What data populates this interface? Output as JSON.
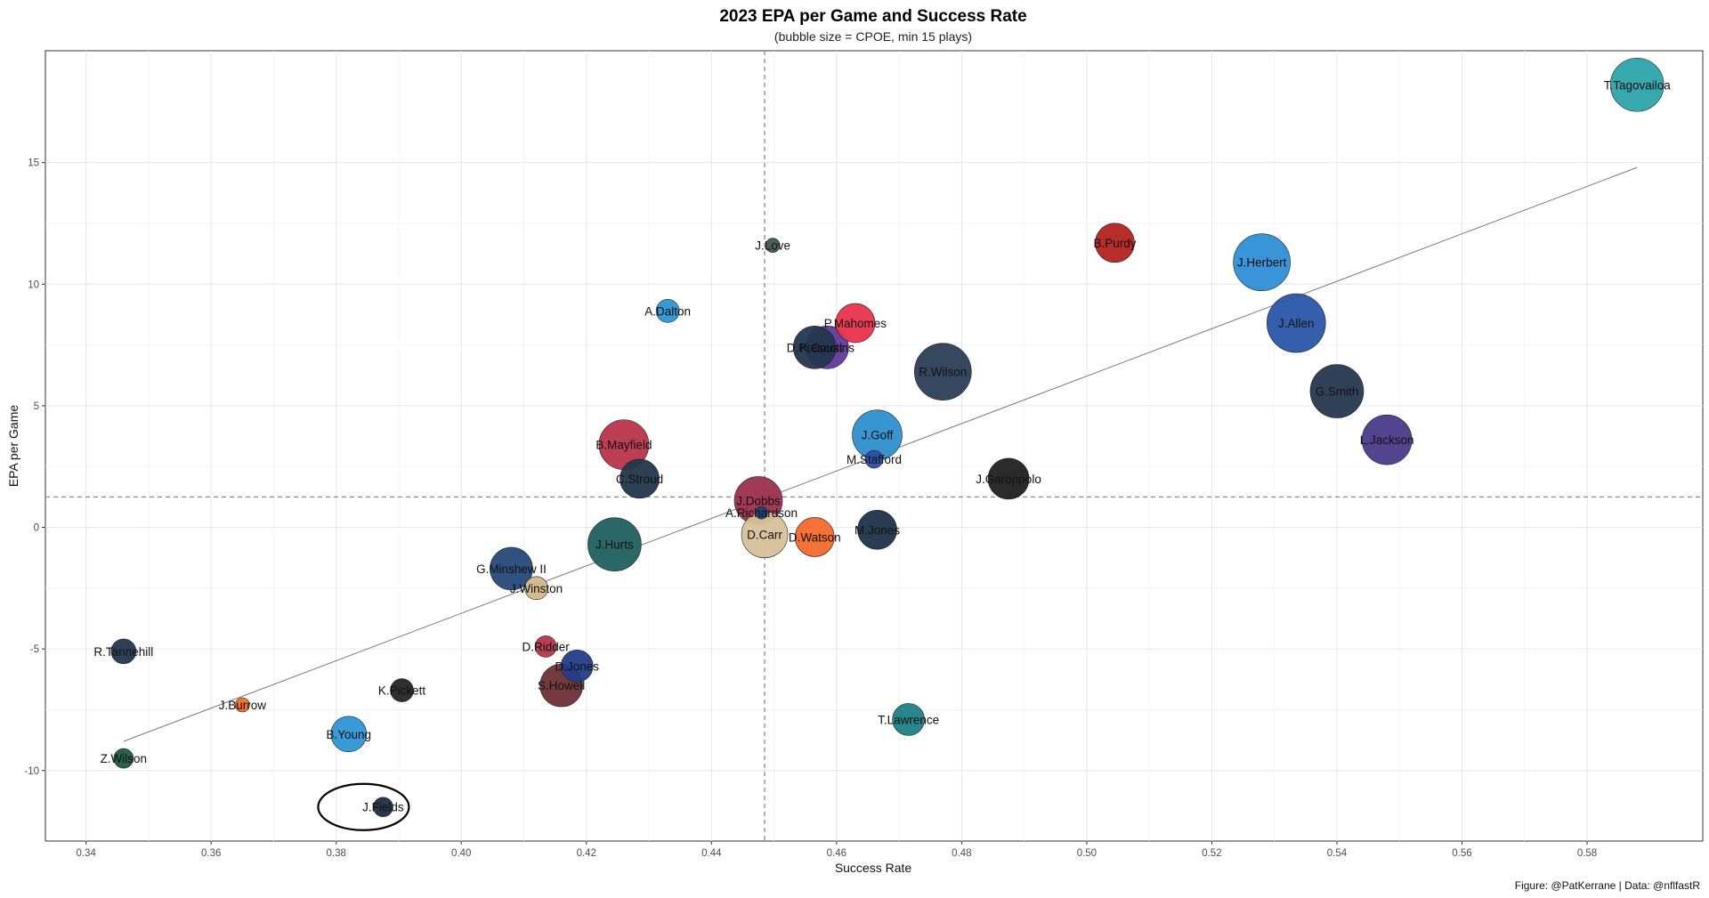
{
  "chart_data": {
    "type": "scatter",
    "title": "2023 EPA per Game and Success Rate",
    "subtitle": "(bubble size = CPOE, min 15 plays)",
    "xlabel": "Success Rate",
    "ylabel": "EPA per Game",
    "caption": "Figure: @PatKerrane | Data: @nflfastR",
    "xlim": [
      0.3335,
      0.5985
    ],
    "ylim": [
      -12.9,
      19.6
    ],
    "x_ticks": [
      "0.34",
      "0.36",
      "0.38",
      "0.40",
      "0.42",
      "0.44",
      "0.46",
      "0.48",
      "0.50",
      "0.52",
      "0.54",
      "0.56",
      "0.58"
    ],
    "y_ticks": [
      "-10",
      "-5",
      "0",
      "5",
      "10",
      "15"
    ],
    "grid": true,
    "reference_lines": {
      "vertical_x": 0.4485,
      "horizontal_y": 1.25
    },
    "trend_line": {
      "from": [
        0.346,
        -8.8
      ],
      "to": [
        0.588,
        14.8
      ]
    },
    "highlight": {
      "name": "J.Fields",
      "shape": "ellipse"
    },
    "points": [
      {
        "name": "T.Tagovailoa",
        "x": 0.588,
        "y": 18.2,
        "size": 30,
        "color": "#2BA3AA"
      },
      {
        "name": "B.Purdy",
        "x": 0.5045,
        "y": 11.7,
        "size": 22,
        "color": "#B3221F"
      },
      {
        "name": "J.Herbert",
        "x": 0.528,
        "y": 10.9,
        "size": 32,
        "color": "#2E8FD6"
      },
      {
        "name": "J.Allen",
        "x": 0.5335,
        "y": 8.4,
        "size": 33,
        "color": "#2A56A8"
      },
      {
        "name": "G.Smith",
        "x": 0.54,
        "y": 5.6,
        "size": 30,
        "color": "#26384F"
      },
      {
        "name": "L.Jackson",
        "x": 0.548,
        "y": 3.6,
        "size": 28,
        "color": "#4A3A8A"
      },
      {
        "name": "J.Love",
        "x": 0.4498,
        "y": 11.6,
        "size": 8,
        "color": "#3E5A4A"
      },
      {
        "name": "A.Dalton",
        "x": 0.433,
        "y": 8.9,
        "size": 13,
        "color": "#2E95D6"
      },
      {
        "name": "P.Mahomes",
        "x": 0.463,
        "y": 8.4,
        "size": 22,
        "color": "#E8334B"
      },
      {
        "name": "K.Cousins",
        "x": 0.4585,
        "y": 7.4,
        "size": 24,
        "color": "#5E3A9A"
      },
      {
        "name": "D.Prescott",
        "x": 0.4565,
        "y": 7.4,
        "size": 24,
        "color": "#23364F"
      },
      {
        "name": "R.Wilson",
        "x": 0.477,
        "y": 6.4,
        "size": 32,
        "color": "#2A3E56"
      },
      {
        "name": "J.Goff",
        "x": 0.4665,
        "y": 3.8,
        "size": 28,
        "color": "#2E8FD0"
      },
      {
        "name": "M.Stafford",
        "x": 0.466,
        "y": 2.8,
        "size": 10,
        "color": "#2A4FA8"
      },
      {
        "name": "J.Garoppolo",
        "x": 0.4875,
        "y": 2.0,
        "size": 23,
        "color": "#202020"
      },
      {
        "name": "B.Mayfield",
        "x": 0.426,
        "y": 3.4,
        "size": 28,
        "color": "#B8344A"
      },
      {
        "name": "C.Stroud",
        "x": 0.4285,
        "y": 2.0,
        "size": 22,
        "color": "#22354A"
      },
      {
        "name": "J.Dobbs",
        "x": 0.4475,
        "y": 1.1,
        "size": 27,
        "color": "#9C2F4C"
      },
      {
        "name": "A.Richardson",
        "x": 0.448,
        "y": 0.6,
        "size": 7,
        "color": "#1F3D7A"
      },
      {
        "name": "D.Carr",
        "x": 0.4485,
        "y": -0.3,
        "size": 26,
        "color": "#D8C09A"
      },
      {
        "name": "D.Watson",
        "x": 0.4565,
        "y": -0.4,
        "size": 22,
        "color": "#F4692A"
      },
      {
        "name": "M.Jones",
        "x": 0.4665,
        "y": -0.1,
        "size": 22,
        "color": "#1E314A"
      },
      {
        "name": "J.Hurts",
        "x": 0.4245,
        "y": -0.7,
        "size": 30,
        "color": "#1F5F5E"
      },
      {
        "name": "G.Minshew II",
        "x": 0.408,
        "y": -1.7,
        "size": 24,
        "color": "#26497A"
      },
      {
        "name": "J.Winston",
        "x": 0.412,
        "y": -2.5,
        "size": 13,
        "color": "#D1B888"
      },
      {
        "name": "D.Ridder",
        "x": 0.4135,
        "y": -4.9,
        "size": 12,
        "color": "#B5364A"
      },
      {
        "name": "D.Jones",
        "x": 0.4185,
        "y": -5.7,
        "size": 18,
        "color": "#233C8A"
      },
      {
        "name": "S.Howell",
        "x": 0.416,
        "y": -6.5,
        "size": 24,
        "color": "#6B3036"
      },
      {
        "name": "R.Tannehill",
        "x": 0.346,
        "y": -5.1,
        "size": 14,
        "color": "#23364F"
      },
      {
        "name": "J.Burrow",
        "x": 0.365,
        "y": -7.3,
        "size": 8,
        "color": "#F26B2A"
      },
      {
        "name": "K.Pickett",
        "x": 0.3905,
        "y": -6.7,
        "size": 13,
        "color": "#252525"
      },
      {
        "name": "B.Young",
        "x": 0.382,
        "y": -8.5,
        "size": 20,
        "color": "#2E95D6"
      },
      {
        "name": "Z.Wilson",
        "x": 0.346,
        "y": -9.5,
        "size": 11,
        "color": "#1E5A40"
      },
      {
        "name": "J.Fields",
        "x": 0.3875,
        "y": -11.5,
        "size": 11,
        "color": "#1E2E42"
      },
      {
        "name": "T.Lawrence",
        "x": 0.4715,
        "y": -7.9,
        "size": 18,
        "color": "#1E7F86"
      }
    ]
  }
}
